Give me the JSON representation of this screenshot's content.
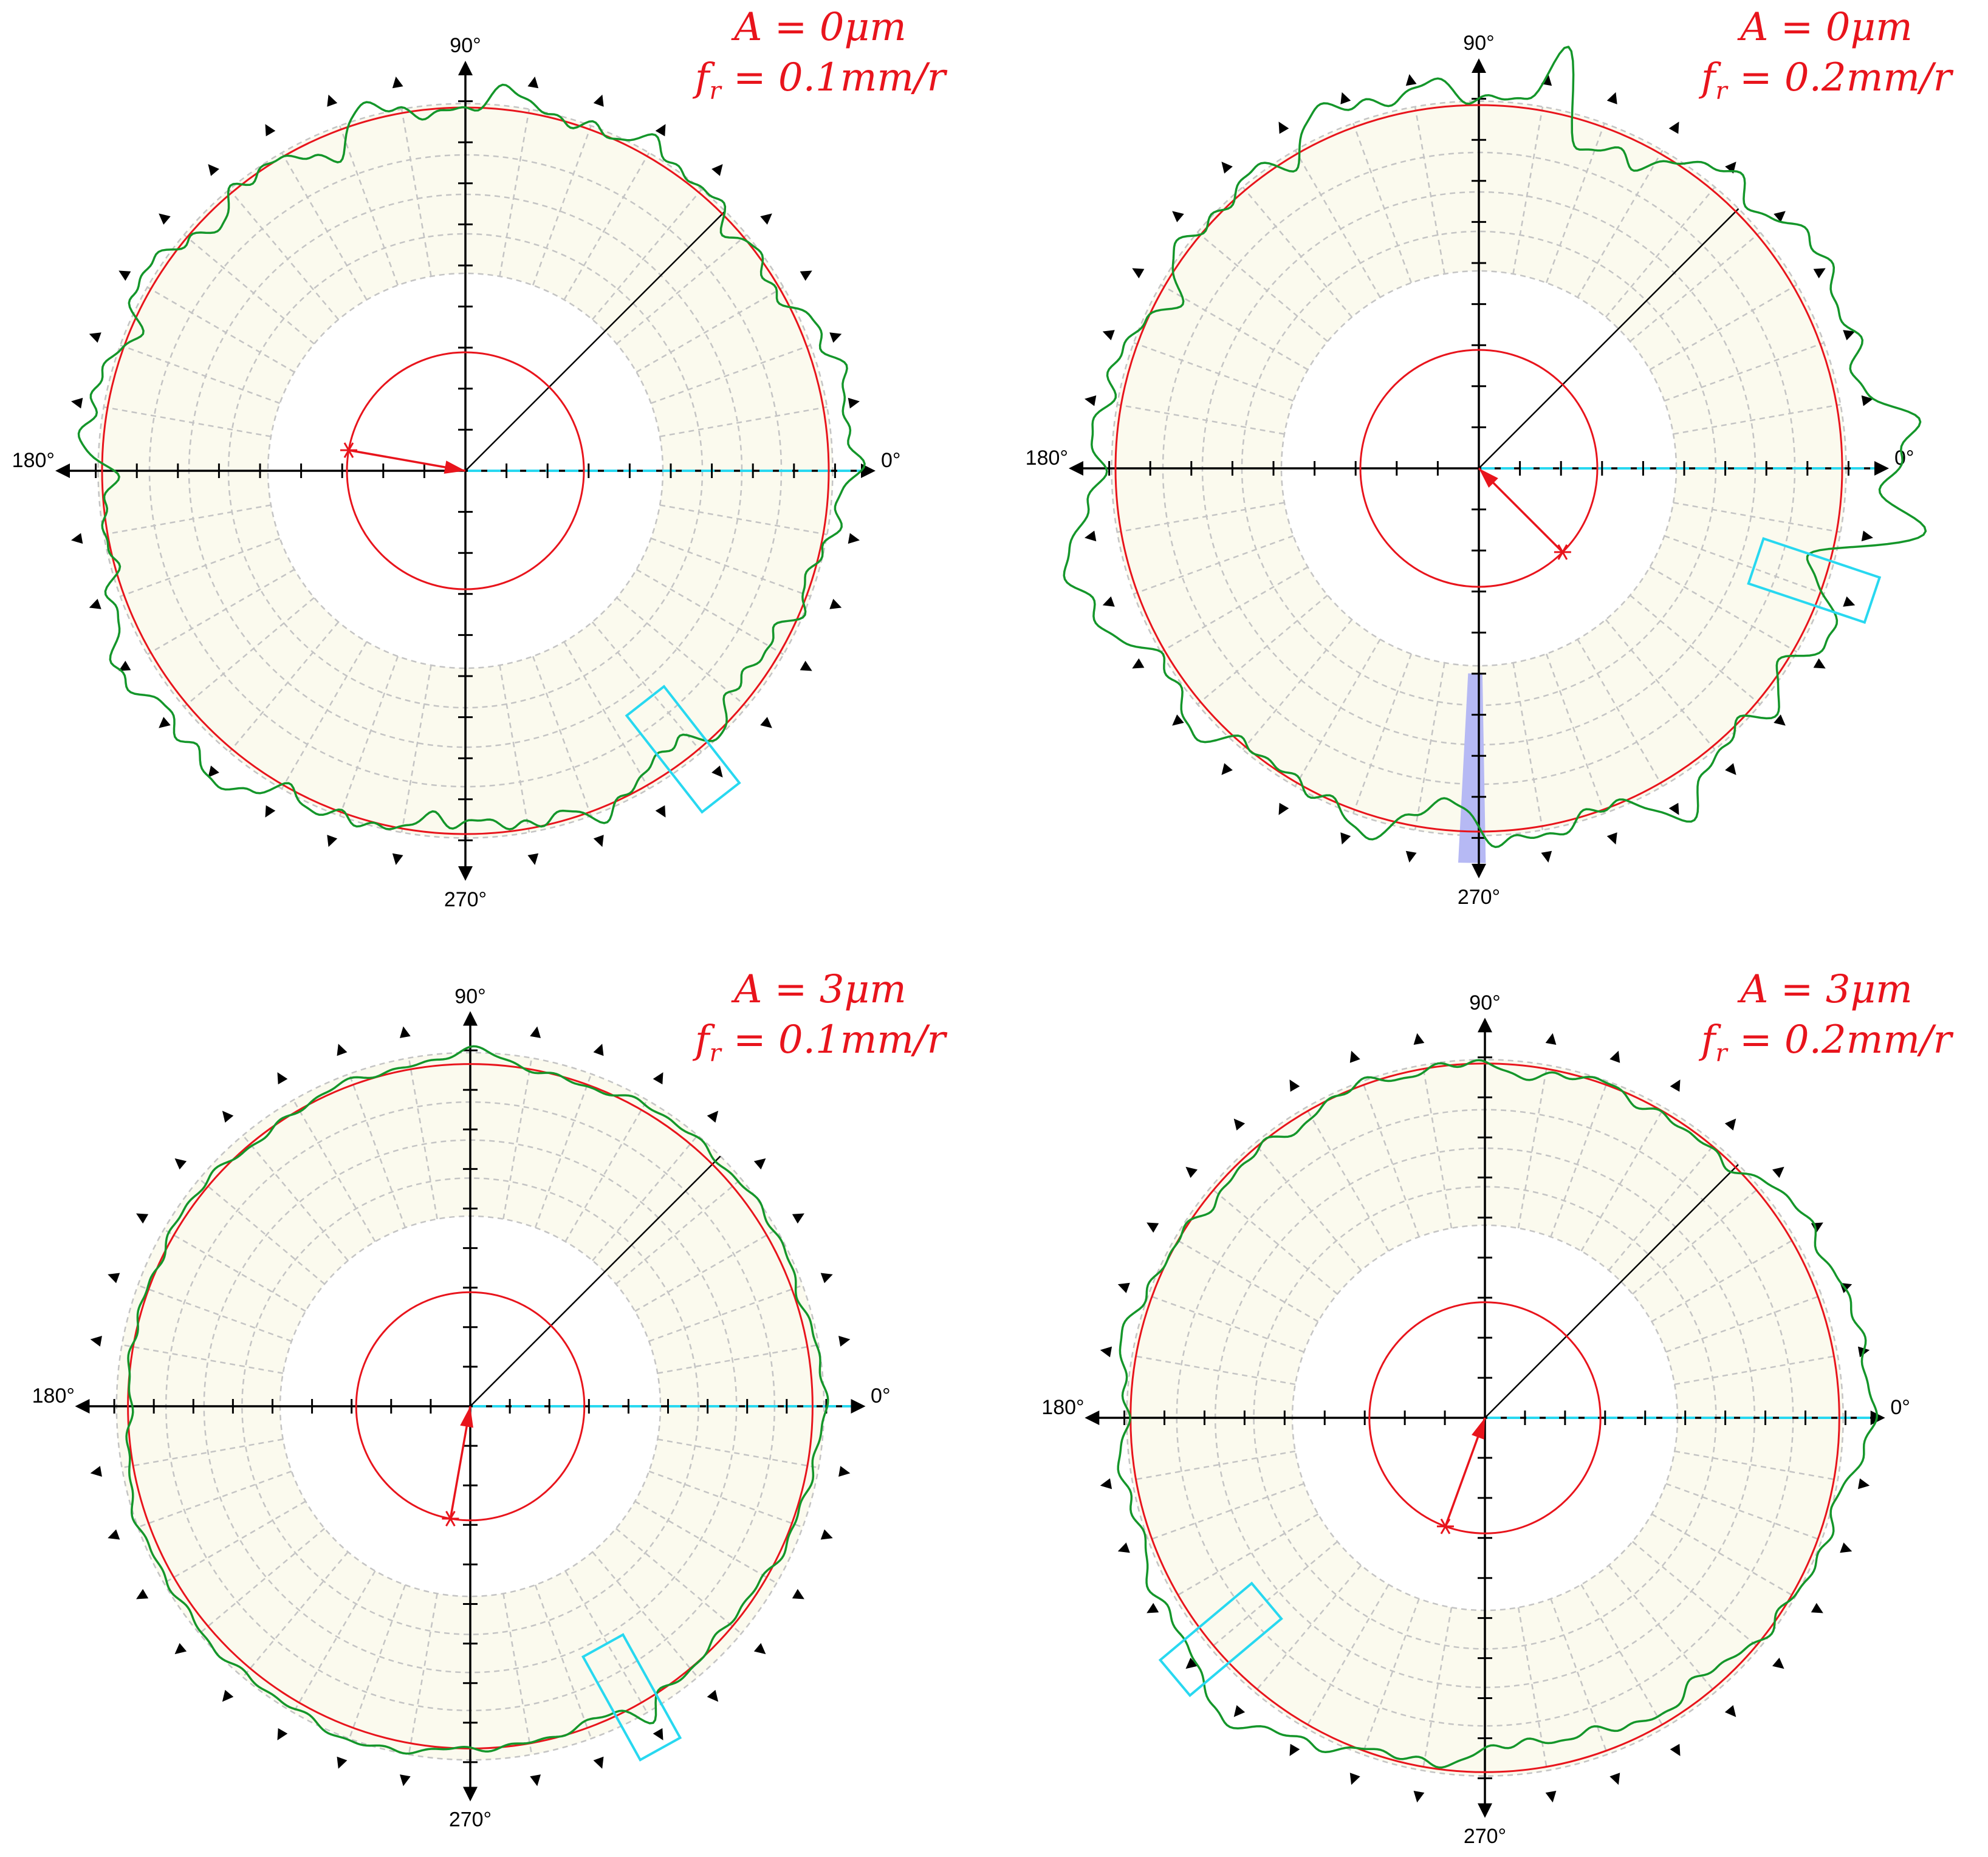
{
  "figure": {
    "colors": {
      "band": "#fbfaee",
      "grid": "#c4c4c4",
      "reference": "#e8141c",
      "profile": "#14962a",
      "marker": "#28d8f0",
      "axis": "#000000",
      "shade": "#b6b9f4"
    },
    "panels": [
      {
        "amplitude": "A = 0μm",
        "feed_var": "f",
        "feed_sub": "r",
        "feed_val": " = 0.1mm/r",
        "angle_labels": {
          "top": "90°",
          "left": "180°",
          "right": "0°",
          "bottom": "270°"
        }
      },
      {
        "amplitude": "A = 0μm",
        "feed_var": "f",
        "feed_sub": "r",
        "feed_val": " = 0.2mm/r",
        "angle_labels": {
          "top": "90°",
          "left": "180°",
          "right": "0°",
          "bottom": "270°"
        }
      },
      {
        "amplitude": "A = 3μm",
        "feed_var": "f",
        "feed_sub": "r",
        "feed_val": " = 0.1mm/r",
        "angle_labels": {
          "top": "90°",
          "left": "180°",
          "right": "0°",
          "bottom": "270°"
        }
      },
      {
        "amplitude": "A = 3μm",
        "feed_var": "f",
        "feed_sub": "r",
        "feed_val": " = 0.2mm/r",
        "angle_labels": {
          "top": "90°",
          "left": "180°",
          "right": "0°",
          "bottom": "270°"
        }
      }
    ]
  },
  "chart_data": [
    {
      "type": "polar-roundness",
      "title": "A = 0μm, fr = 0.1mm/r",
      "angle_ticks": [
        "0°",
        "90°",
        "180°",
        "270°"
      ],
      "reference_circle_level": 0.92,
      "center_circle_level": 0.3,
      "profile": {
        "base": 0.92,
        "waves": [
          [
            2,
            0.04,
            0.5
          ],
          [
            5,
            0.025,
            1.2
          ],
          [
            9,
            0.02,
            0.3
          ],
          [
            17,
            0.016,
            2.0
          ],
          [
            31,
            0.012,
            0.7
          ],
          [
            47,
            0.01,
            1.5
          ],
          [
            73,
            0.007,
            0.2
          ]
        ],
        "bumps": [
          [
            105,
            0.09,
            5
          ],
          [
            120,
            0.05,
            4
          ],
          [
            148,
            0.05,
            4
          ],
          [
            175,
            0.05,
            3
          ],
          [
            230,
            0.05,
            5
          ],
          [
            262,
            0.04,
            4
          ],
          [
            312,
            0.05,
            3
          ],
          [
            348,
            0.04,
            4
          ],
          [
            42,
            -0.05,
            4
          ]
        ]
      },
      "eccentricity_vector": {
        "angle_deg": 170,
        "magnitude": 0.3
      },
      "highlight_sector_deg": [
        -57,
        -47
      ],
      "shaded_sector_deg": null
    },
    {
      "type": "polar-roundness",
      "title": "A = 0μm, fr = 0.2mm/r",
      "angle_ticks": [
        "0°",
        "90°",
        "180°",
        "270°"
      ],
      "reference_circle_level": 0.92,
      "center_circle_level": 0.3,
      "profile": {
        "base": 0.95,
        "waves": [
          [
            2,
            0.05,
            1.0
          ],
          [
            4,
            0.03,
            0.4
          ],
          [
            7,
            0.025,
            2.2
          ],
          [
            13,
            0.02,
            1.1
          ],
          [
            23,
            0.015,
            0.3
          ],
          [
            37,
            0.012,
            1.9
          ],
          [
            61,
            0.009,
            0.8
          ]
        ],
        "bumps": [
          [
            78,
            0.18,
            2
          ],
          [
            62,
            -0.05,
            4
          ],
          [
            100,
            0.04,
            5
          ],
          [
            115,
            0.05,
            4
          ],
          [
            128,
            0.06,
            4
          ],
          [
            150,
            -0.04,
            4
          ],
          [
            210,
            -0.06,
            5
          ],
          [
            265,
            -0.05,
            4
          ],
          [
            275,
            0.05,
            4
          ],
          [
            300,
            0.06,
            4
          ],
          [
            322,
            0.1,
            3
          ],
          [
            335,
            0.07,
            3
          ],
          [
            352,
            0.17,
            2
          ],
          [
            6,
            0.08,
            2
          ],
          [
            345,
            -0.08,
            3
          ]
        ]
      },
      "eccentricity_vector": {
        "angle_deg": -45,
        "magnitude": 0.3
      },
      "highlight_sector_deg": [
        -25,
        -12
      ],
      "shaded_sector_deg": [
        -93,
        -89
      ]
    },
    {
      "type": "polar-roundness",
      "title": "A = 3μm, fr = 0.1mm/r",
      "angle_ticks": [
        "0°",
        "90°",
        "180°",
        "270°"
      ],
      "reference_circle_level": 0.9,
      "center_circle_level": 0.3,
      "profile": {
        "base": 0.91,
        "waves": [
          [
            2,
            0.012,
            0.3
          ],
          [
            3,
            0.008,
            1.4
          ],
          [
            7,
            0.007,
            2.1
          ],
          [
            13,
            0.006,
            0.9
          ],
          [
            29,
            0.005,
            1.7
          ],
          [
            53,
            0.004,
            0.4
          ]
        ],
        "bumps": [
          [
            90,
            0.03,
            3
          ],
          [
            300,
            0.06,
            1.5
          ]
        ]
      },
      "eccentricity_vector": {
        "angle_deg": -100,
        "magnitude": 0.3
      },
      "highlight_sector_deg": [
        -66,
        -56
      ],
      "shaded_sector_deg": null
    },
    {
      "type": "polar-roundness",
      "title": "A = 3μm, fr = 0.2mm/r",
      "angle_ticks": [
        "0°",
        "90°",
        "180°",
        "270°"
      ],
      "reference_circle_level": 0.92,
      "center_circle_level": 0.3,
      "profile": {
        "base": 0.93,
        "waves": [
          [
            2,
            0.05,
            0.9
          ],
          [
            3,
            0.02,
            2.0
          ],
          [
            5,
            0.015,
            0.2
          ],
          [
            11,
            0.012,
            1.3
          ],
          [
            19,
            0.01,
            2.4
          ],
          [
            37,
            0.007,
            0.6
          ],
          [
            59,
            0.005,
            1.8
          ]
        ],
        "bumps": [
          [
            115,
            0.04,
            6
          ],
          [
            200,
            -0.03,
            5
          ],
          [
            230,
            0.05,
            2
          ]
        ]
      },
      "eccentricity_vector": {
        "angle_deg": -110,
        "magnitude": 0.3
      },
      "highlight_sector_deg": [
        -146,
        -134
      ],
      "shaded_sector_deg": null
    }
  ]
}
